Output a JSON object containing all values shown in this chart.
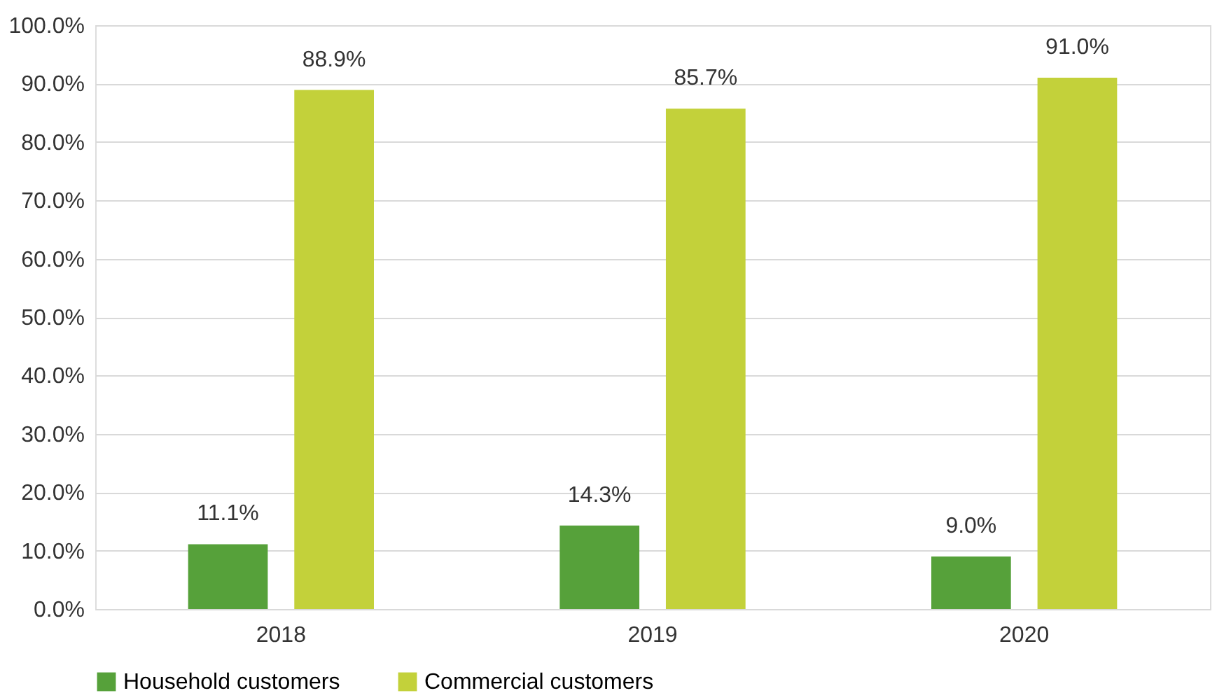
{
  "chart_data": {
    "type": "bar",
    "categories": [
      "2018",
      "2019",
      "2020"
    ],
    "series": [
      {
        "name": "Household customers",
        "color": "#56a13a",
        "values": [
          11.1,
          14.3,
          9.0
        ],
        "value_labels": [
          "11.1%",
          "14.3%",
          "9.0%"
        ]
      },
      {
        "name": "Commercial customers",
        "color": "#c3d13a",
        "values": [
          88.9,
          85.7,
          91.0
        ],
        "value_labels": [
          "88.9%",
          "85.7%",
          "91.0%"
        ]
      }
    ],
    "ylim": [
      0,
      100
    ],
    "yticks": [
      {
        "value": 0,
        "label": "0.0%"
      },
      {
        "value": 10,
        "label": "10.0%"
      },
      {
        "value": 20,
        "label": "20.0%"
      },
      {
        "value": 30,
        "label": "30.0%"
      },
      {
        "value": 40,
        "label": "40.0%"
      },
      {
        "value": 50,
        "label": "50.0%"
      },
      {
        "value": 60,
        "label": "60.0%"
      },
      {
        "value": 70,
        "label": "70.0%"
      },
      {
        "value": 80,
        "label": "80.0%"
      },
      {
        "value": 90,
        "label": "90.0%"
      },
      {
        "value": 100,
        "label": "100.0%"
      }
    ],
    "grid": "y",
    "legend": "bottom"
  }
}
